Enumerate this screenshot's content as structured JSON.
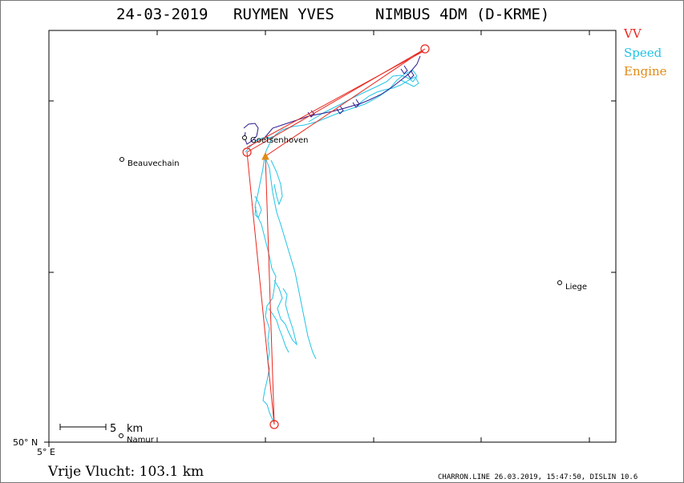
{
  "title": {
    "date": "24-03-2019",
    "pilot": "RUYMEN YVES",
    "glider": "NIMBUS 4DM (D-KRME)"
  },
  "legend": [
    {
      "label": "VV",
      "color": "#e8281e"
    },
    {
      "label": "Speed",
      "color": "#22c4e6"
    },
    {
      "label": "Engine",
      "color": "#e08a14"
    }
  ],
  "places": [
    {
      "name": "Goetsenhoven"
    },
    {
      "name": "Beauvechain"
    },
    {
      "name": "Liege"
    },
    {
      "name": "Namur"
    }
  ],
  "axes": {
    "lat_label": "50° N",
    "lon_label": "5° E"
  },
  "scale_bar": {
    "value": "5",
    "unit": "km"
  },
  "distance_text": "Vrije Vlucht:  103.1 km",
  "footer": "CHARRON.LINE 26.03.2019, 15:47:50, DISLIN 10.6",
  "colors": {
    "task": "#e8281e",
    "track_speed": "#22c4e6",
    "track_slow": "#2b1a8c",
    "engine": "#e08a14"
  }
}
